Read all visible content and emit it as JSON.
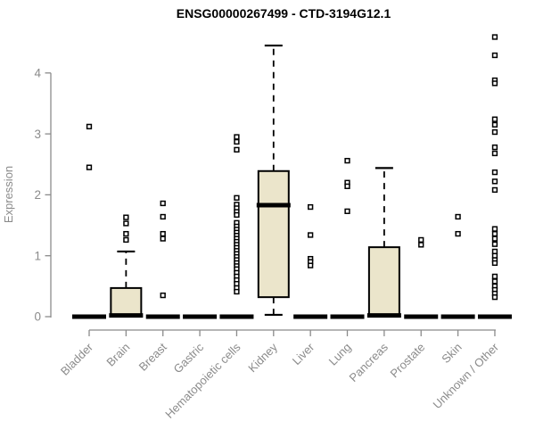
{
  "title": "ENSG00000267499 - CTD-3194G12.1",
  "colors": {
    "box_fill": "#ebe5cb",
    "box_stroke": "#000000",
    "median": "#000000",
    "outlier_stroke": "#000000",
    "outlier_fill": "#ffffff",
    "axis": "#8b8b8b",
    "label_text": "#8b8b8b",
    "title_text": "#000000",
    "background": "#ffffff"
  },
  "chart_data": {
    "type": "boxplot",
    "title": "ENSG00000267499 - CTD-3194G12.1",
    "xlabel": "",
    "ylabel": "Expression",
    "ylim": [
      0,
      4.6
    ],
    "yticks": [
      0,
      1,
      2,
      3,
      4
    ],
    "grid": false,
    "legend": false,
    "categories": [
      "Bladder",
      "Brain",
      "Breast",
      "Gastric",
      "Hematopoietic cells",
      "Kidney",
      "Liver",
      "Lung",
      "Pancreas",
      "Prostate",
      "Skin",
      "Unknown / Other"
    ],
    "series": [
      {
        "name": "Bladder",
        "low": 0,
        "q1": 0,
        "median": 0,
        "q3": 0,
        "high": 0,
        "outliers": [
          3.12,
          2.45
        ]
      },
      {
        "name": "Brain",
        "low": 0,
        "q1": 0,
        "median": 0.02,
        "q3": 0.47,
        "high": 1.07,
        "outliers": [
          1.63,
          1.53,
          1.36,
          1.26
        ]
      },
      {
        "name": "Breast",
        "low": 0,
        "q1": 0,
        "median": 0,
        "q3": 0,
        "high": 0,
        "outliers": [
          1.86,
          1.64,
          1.36,
          1.28,
          0.35
        ]
      },
      {
        "name": "Gastric",
        "low": 0,
        "q1": 0,
        "median": 0,
        "q3": 0,
        "high": 0,
        "outliers": []
      },
      {
        "name": "Hematopoietic cells",
        "low": 0,
        "q1": 0,
        "median": 0,
        "q3": 0,
        "high": 0,
        "outliers": [
          2.95,
          2.87,
          2.74,
          1.95,
          1.84,
          1.78,
          1.72,
          1.67,
          1.54,
          1.48,
          1.43,
          1.38,
          1.33,
          1.28,
          1.23,
          1.18,
          1.13,
          1.08,
          1.03,
          0.98,
          0.93,
          0.88,
          0.83,
          0.78,
          0.72,
          0.66,
          0.6,
          0.54,
          0.47,
          0.41
        ]
      },
      {
        "name": "Kidney",
        "low": 0.03,
        "q1": 0.32,
        "median": 1.83,
        "q3": 2.39,
        "high": 4.45,
        "outliers": []
      },
      {
        "name": "Liver",
        "low": 0,
        "q1": 0,
        "median": 0,
        "q3": 0,
        "high": 0,
        "outliers": [
          1.8,
          1.34,
          0.95,
          0.9,
          0.84
        ]
      },
      {
        "name": "Lung",
        "low": 0,
        "q1": 0,
        "median": 0,
        "q3": 0,
        "high": 0,
        "outliers": [
          2.56,
          2.2,
          2.14,
          1.73
        ]
      },
      {
        "name": "Pancreas",
        "low": 0,
        "q1": 0,
        "median": 0.02,
        "q3": 1.14,
        "high": 2.44,
        "outliers": []
      },
      {
        "name": "Prostate",
        "low": 0,
        "q1": 0,
        "median": 0,
        "q3": 0,
        "high": 0,
        "outliers": [
          1.26,
          1.18
        ]
      },
      {
        "name": "Skin",
        "low": 0,
        "q1": 0,
        "median": 0,
        "q3": 0,
        "high": 0,
        "outliers": [
          1.64,
          1.36
        ]
      },
      {
        "name": "Unknown / Other",
        "low": 0,
        "q1": 0,
        "median": 0,
        "q3": 0,
        "high": 0,
        "outliers": [
          4.59,
          4.29,
          3.88,
          3.83,
          3.24,
          3.15,
          3.03,
          2.78,
          2.68,
          2.37,
          2.22,
          2.08,
          1.44,
          1.36,
          1.28,
          1.19,
          1.07,
          1.0,
          0.93,
          0.88,
          0.66,
          0.58,
          0.5,
          0.44,
          0.38,
          0.32
        ]
      }
    ]
  }
}
